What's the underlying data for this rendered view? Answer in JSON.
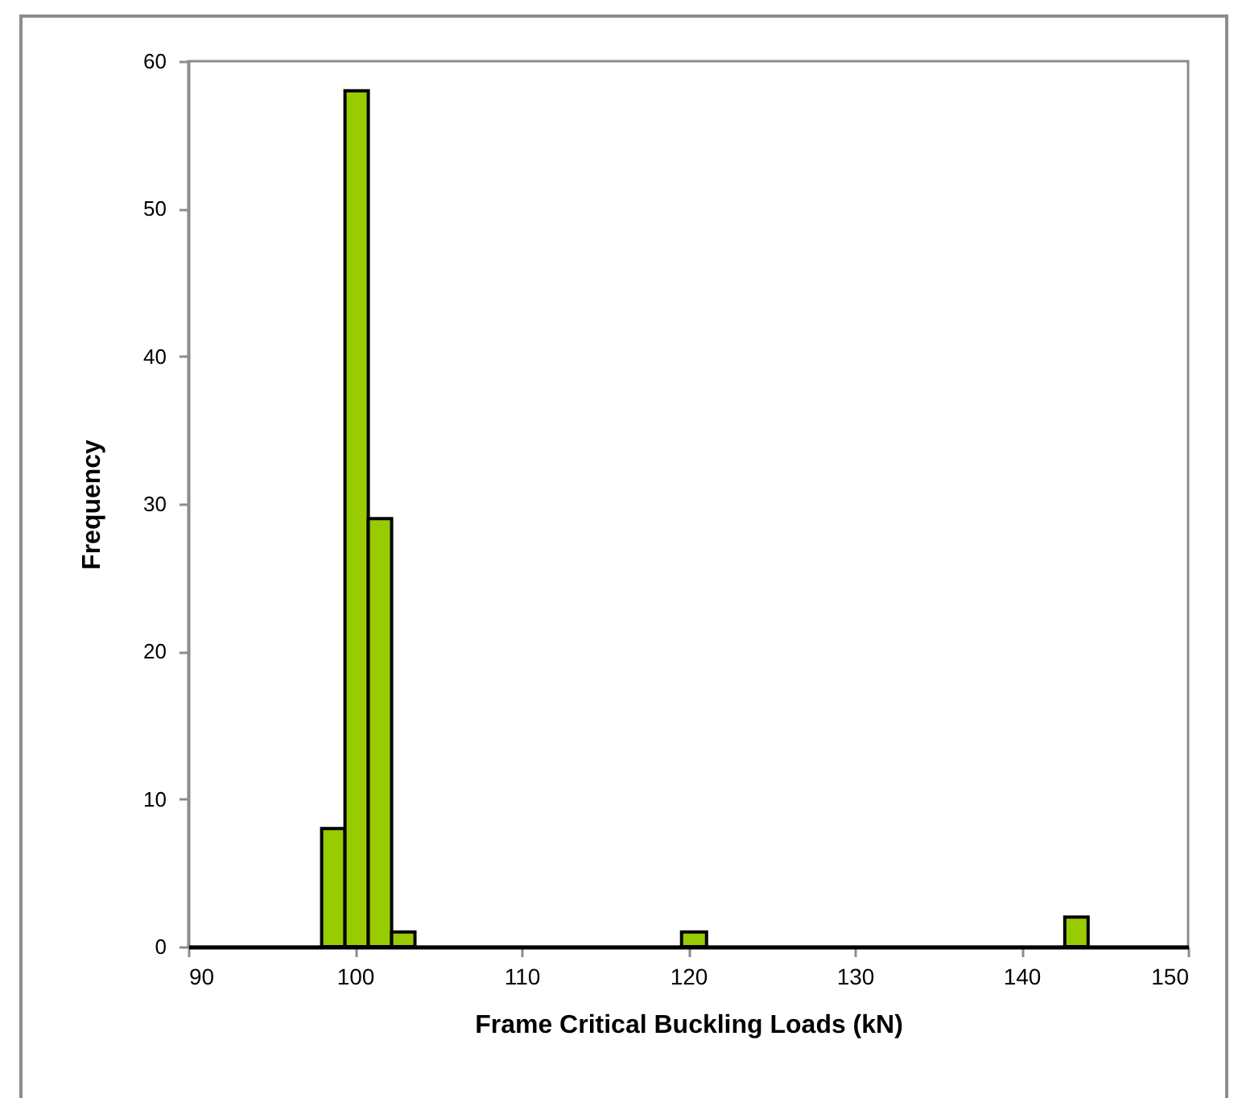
{
  "chart_data": {
    "type": "histogram",
    "xlabel": "Frame Critical Buckling Loads (kN)",
    "ylabel": "Frequency",
    "bins": [
      98.0,
      99.4,
      100.8,
      102.2,
      103.6,
      119.6,
      121.1,
      142.6,
      144.0
    ],
    "values": [
      8,
      58,
      29,
      1,
      0,
      1,
      0,
      2
    ],
    "color": "#99cc00",
    "xlim": [
      90,
      150
    ],
    "xticks": [
      90,
      100,
      110,
      120,
      130,
      140,
      150
    ],
    "ylim": [
      0,
      60
    ],
    "yticks": [
      0,
      10,
      20,
      30,
      40,
      50,
      60
    ]
  }
}
